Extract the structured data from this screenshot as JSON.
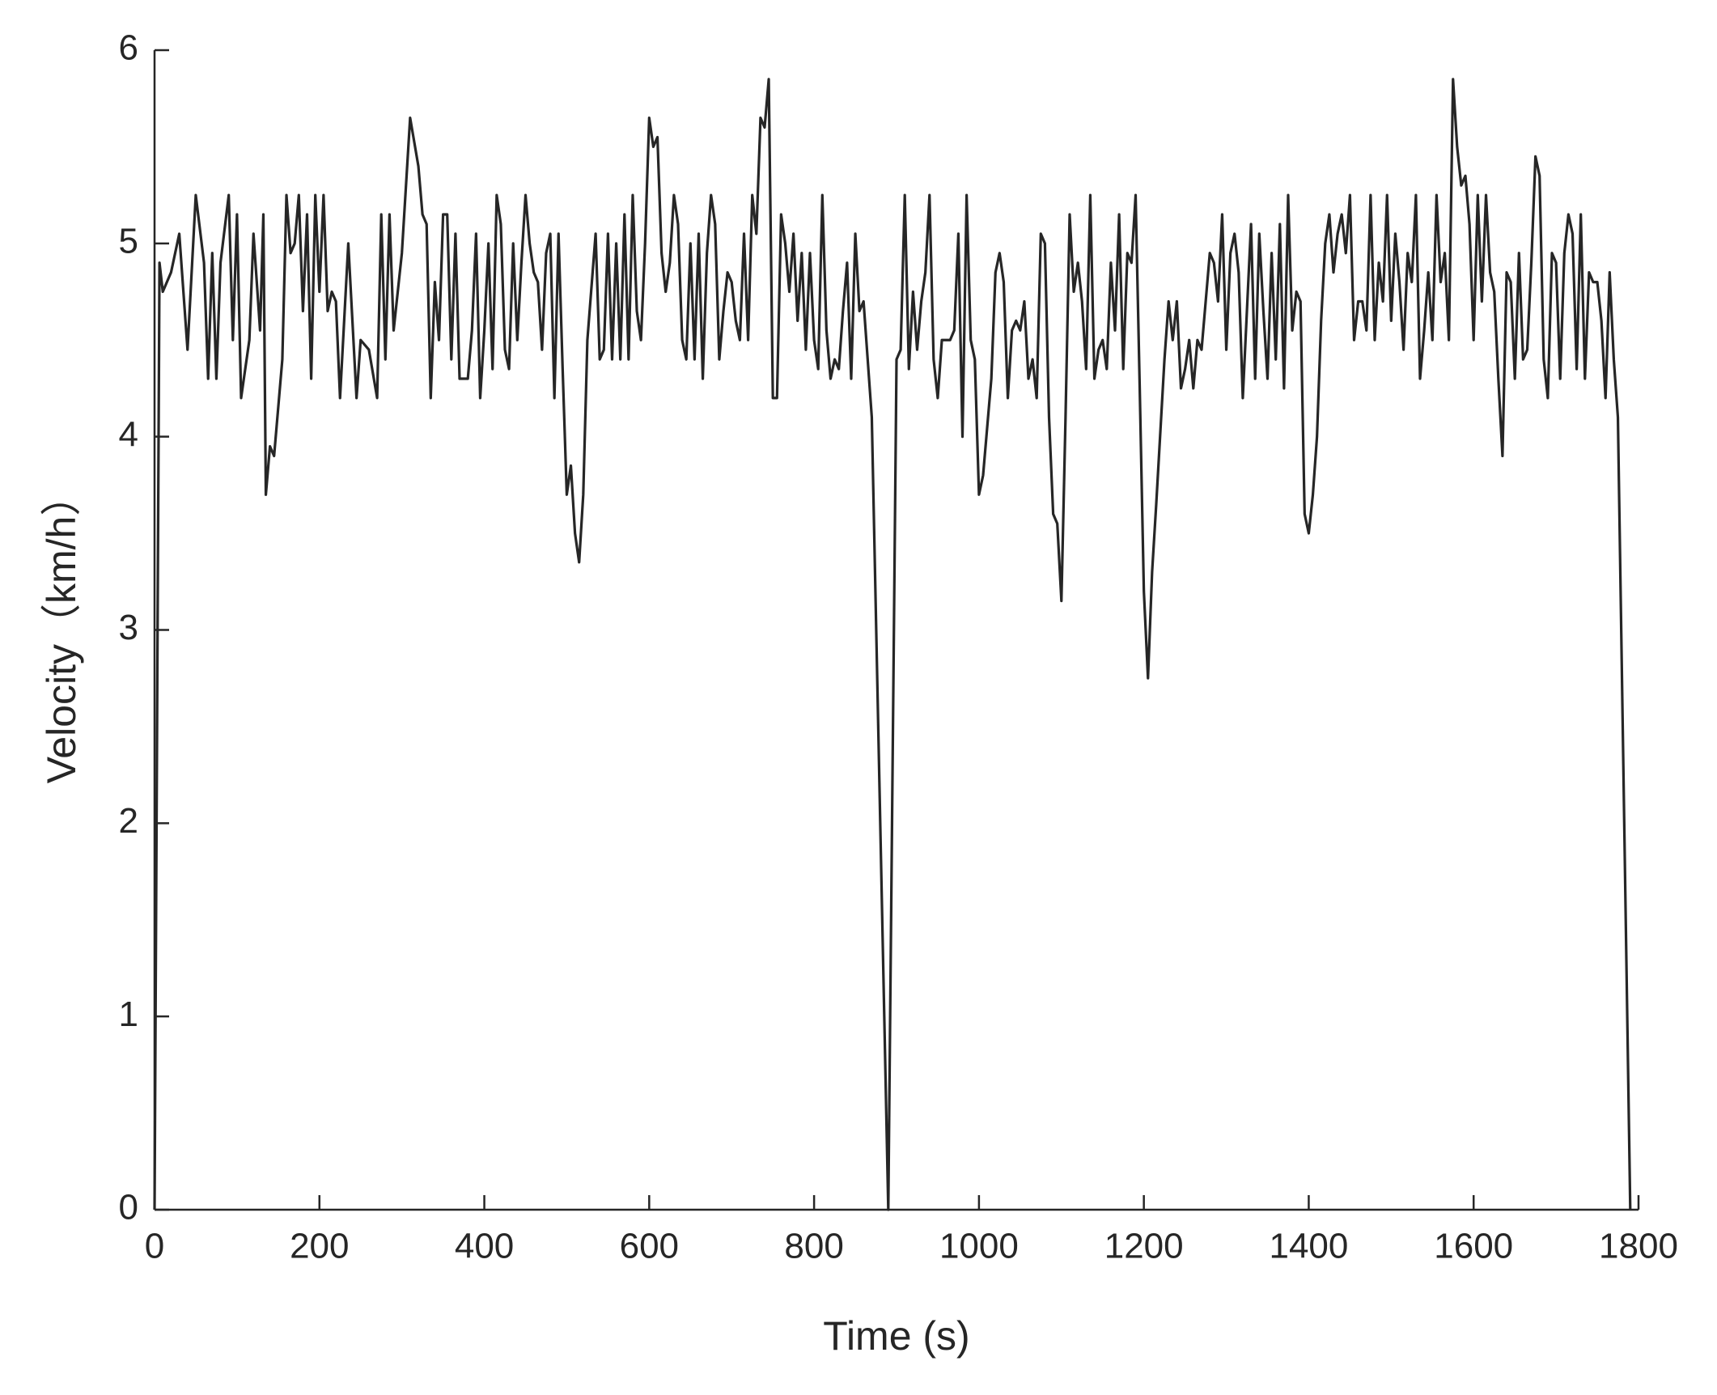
{
  "chart_data": {
    "type": "line",
    "x_label": "Time (s)",
    "y_label": "Velocity（km/h）",
    "xlim": [
      0,
      1800
    ],
    "ylim": [
      0,
      6
    ],
    "xticks": [
      0,
      200,
      400,
      600,
      800,
      1000,
      1200,
      1400,
      1600,
      1800
    ],
    "yticks": [
      0,
      1,
      2,
      3,
      4,
      5,
      6
    ],
    "grid": false,
    "series": [
      {
        "color": "#262626",
        "x": [
          0,
          6,
          10,
          20,
          30,
          40,
          50,
          60,
          65,
          70,
          75,
          80,
          90,
          95,
          100,
          105,
          115,
          120,
          128,
          132,
          135,
          140,
          145,
          155,
          160,
          165,
          170,
          175,
          180,
          185,
          190,
          195,
          200,
          205,
          210,
          215,
          220,
          225,
          235,
          240,
          245,
          250,
          260,
          270,
          275,
          280,
          285,
          290,
          300,
          310,
          320,
          325,
          330,
          335,
          340,
          345,
          350,
          355,
          360,
          365,
          370,
          380,
          385,
          390,
          395,
          400,
          405,
          410,
          415,
          420,
          425,
          430,
          435,
          440,
          445,
          450,
          455,
          460,
          465,
          470,
          475,
          480,
          485,
          490,
          495,
          500,
          505,
          510,
          515,
          520,
          525,
          535,
          540,
          545,
          550,
          555,
          560,
          565,
          570,
          575,
          580,
          585,
          590,
          595,
          600,
          605,
          610,
          615,
          620,
          625,
          630,
          635,
          640,
          645,
          650,
          655,
          660,
          665,
          670,
          675,
          680,
          685,
          690,
          695,
          700,
          705,
          710,
          715,
          720,
          725,
          730,
          735,
          740,
          745,
          750,
          755,
          760,
          765,
          770,
          775,
          780,
          785,
          790,
          795,
          800,
          805,
          810,
          815,
          820,
          825,
          830,
          835,
          840,
          845,
          850,
          855,
          860,
          870,
          890,
          900,
          905,
          910,
          915,
          920,
          925,
          930,
          935,
          940,
          945,
          950,
          955,
          965,
          970,
          975,
          980,
          985,
          990,
          995,
          1000,
          1005,
          1015,
          1020,
          1025,
          1030,
          1035,
          1040,
          1045,
          1050,
          1055,
          1060,
          1065,
          1070,
          1075,
          1080,
          1085,
          1090,
          1095,
          1100,
          1105,
          1110,
          1115,
          1120,
          1125,
          1130,
          1135,
          1140,
          1145,
          1150,
          1155,
          1160,
          1165,
          1170,
          1175,
          1180,
          1185,
          1190,
          1195,
          1200,
          1205,
          1210,
          1215,
          1225,
          1230,
          1235,
          1240,
          1245,
          1250,
          1255,
          1260,
          1265,
          1270,
          1280,
          1285,
          1290,
          1295,
          1300,
          1305,
          1310,
          1315,
          1320,
          1325,
          1330,
          1335,
          1340,
          1345,
          1350,
          1355,
          1360,
          1365,
          1370,
          1375,
          1380,
          1385,
          1390,
          1395,
          1400,
          1405,
          1410,
          1415,
          1420,
          1425,
          1430,
          1435,
          1440,
          1445,
          1450,
          1455,
          1460,
          1465,
          1470,
          1475,
          1480,
          1485,
          1490,
          1495,
          1500,
          1505,
          1510,
          1515,
          1520,
          1525,
          1530,
          1535,
          1540,
          1545,
          1550,
          1555,
          1560,
          1565,
          1570,
          1575,
          1580,
          1585,
          1590,
          1595,
          1600,
          1605,
          1610,
          1615,
          1620,
          1625,
          1630,
          1635,
          1640,
          1645,
          1650,
          1655,
          1660,
          1665,
          1670,
          1675,
          1680,
          1685,
          1690,
          1695,
          1700,
          1705,
          1710,
          1715,
          1720,
          1725,
          1730,
          1735,
          1740,
          1745,
          1750,
          1755,
          1760,
          1765,
          1770,
          1775,
          1790
        ],
        "values": [
          0,
          4.9,
          4.75,
          4.85,
          5.05,
          4.45,
          5.25,
          4.9,
          4.3,
          4.95,
          4.3,
          4.9,
          5.25,
          4.5,
          5.15,
          4.2,
          4.5,
          5.05,
          4.55,
          5.15,
          3.7,
          3.95,
          3.9,
          4.4,
          5.25,
          4.95,
          5.0,
          5.25,
          4.65,
          5.15,
          4.3,
          5.25,
          4.75,
          5.25,
          4.65,
          4.75,
          4.7,
          4.2,
          5.0,
          4.6,
          4.2,
          4.5,
          4.45,
          4.2,
          5.15,
          4.4,
          5.15,
          4.55,
          4.95,
          5.65,
          5.4,
          5.15,
          5.1,
          4.2,
          4.8,
          4.5,
          5.15,
          5.15,
          4.4,
          5.05,
          4.3,
          4.3,
          4.55,
          5.05,
          4.2,
          4.55,
          5.0,
          4.35,
          5.25,
          5.1,
          4.45,
          4.35,
          5.0,
          4.5,
          4.9,
          5.25,
          5.0,
          4.85,
          4.8,
          4.45,
          4.95,
          5.05,
          4.2,
          5.05,
          4.35,
          3.7,
          3.85,
          3.5,
          3.35,
          3.7,
          4.5,
          5.05,
          4.4,
          4.45,
          5.05,
          4.4,
          5.0,
          4.4,
          5.15,
          4.4,
          5.25,
          4.65,
          4.5,
          5.0,
          5.65,
          5.5,
          5.55,
          4.95,
          4.75,
          4.9,
          5.25,
          5.1,
          4.5,
          4.4,
          5.0,
          4.4,
          5.05,
          4.3,
          4.95,
          5.25,
          5.1,
          4.4,
          4.65,
          4.85,
          4.8,
          4.6,
          4.5,
          5.05,
          4.5,
          5.25,
          5.05,
          5.65,
          5.6,
          5.85,
          4.2,
          4.2,
          5.15,
          5.0,
          4.75,
          5.05,
          4.6,
          4.95,
          4.45,
          4.95,
          4.5,
          4.35,
          5.25,
          4.55,
          4.3,
          4.4,
          4.35,
          4.65,
          4.9,
          4.3,
          5.05,
          4.65,
          4.7,
          4.1,
          0,
          4.4,
          4.45,
          5.25,
          4.35,
          4.75,
          4.45,
          4.7,
          4.85,
          5.25,
          4.4,
          4.2,
          4.5,
          4.5,
          4.55,
          5.05,
          4.0,
          5.25,
          4.5,
          4.4,
          3.7,
          3.8,
          4.3,
          4.85,
          4.95,
          4.8,
          4.2,
          4.55,
          4.6,
          4.55,
          4.7,
          4.3,
          4.4,
          4.2,
          5.05,
          5.0,
          4.1,
          3.6,
          3.55,
          3.15,
          4.1,
          5.15,
          4.75,
          4.9,
          4.7,
          4.35,
          5.25,
          4.3,
          4.45,
          4.5,
          4.35,
          4.9,
          4.55,
          5.15,
          4.35,
          4.95,
          4.9,
          5.25,
          4.25,
          3.2,
          2.75,
          3.3,
          3.65,
          4.4,
          4.7,
          4.5,
          4.7,
          4.25,
          4.35,
          4.5,
          4.25,
          4.5,
          4.45,
          4.95,
          4.9,
          4.7,
          5.15,
          4.45,
          4.95,
          5.05,
          4.85,
          4.2,
          4.65,
          5.1,
          4.3,
          5.05,
          4.65,
          4.3,
          4.95,
          4.4,
          5.1,
          4.25,
          5.25,
          4.55,
          4.75,
          4.7,
          3.6,
          3.5,
          3.7,
          4.0,
          4.6,
          5.0,
          5.15,
          4.85,
          5.05,
          5.15,
          4.95,
          5.25,
          4.5,
          4.7,
          4.7,
          4.55,
          5.25,
          4.5,
          4.9,
          4.7,
          5.25,
          4.6,
          5.05,
          4.8,
          4.45,
          4.95,
          4.8,
          5.25,
          4.3,
          4.55,
          4.85,
          4.5,
          5.25,
          4.8,
          4.95,
          4.5,
          5.85,
          5.5,
          5.3,
          5.35,
          5.1,
          4.5,
          5.25,
          4.7,
          5.25,
          4.85,
          4.75,
          4.3,
          3.9,
          4.85,
          4.8,
          4.3,
          4.95,
          4.4,
          4.45,
          4.9,
          5.45,
          5.35,
          4.4,
          4.2,
          4.95,
          4.9,
          4.3,
          4.95,
          5.15,
          5.05,
          4.35,
          5.15,
          4.3,
          4.85,
          4.8,
          4.8,
          4.6,
          4.2,
          4.85,
          4.4,
          4.1,
          0
        ]
      }
    ]
  }
}
